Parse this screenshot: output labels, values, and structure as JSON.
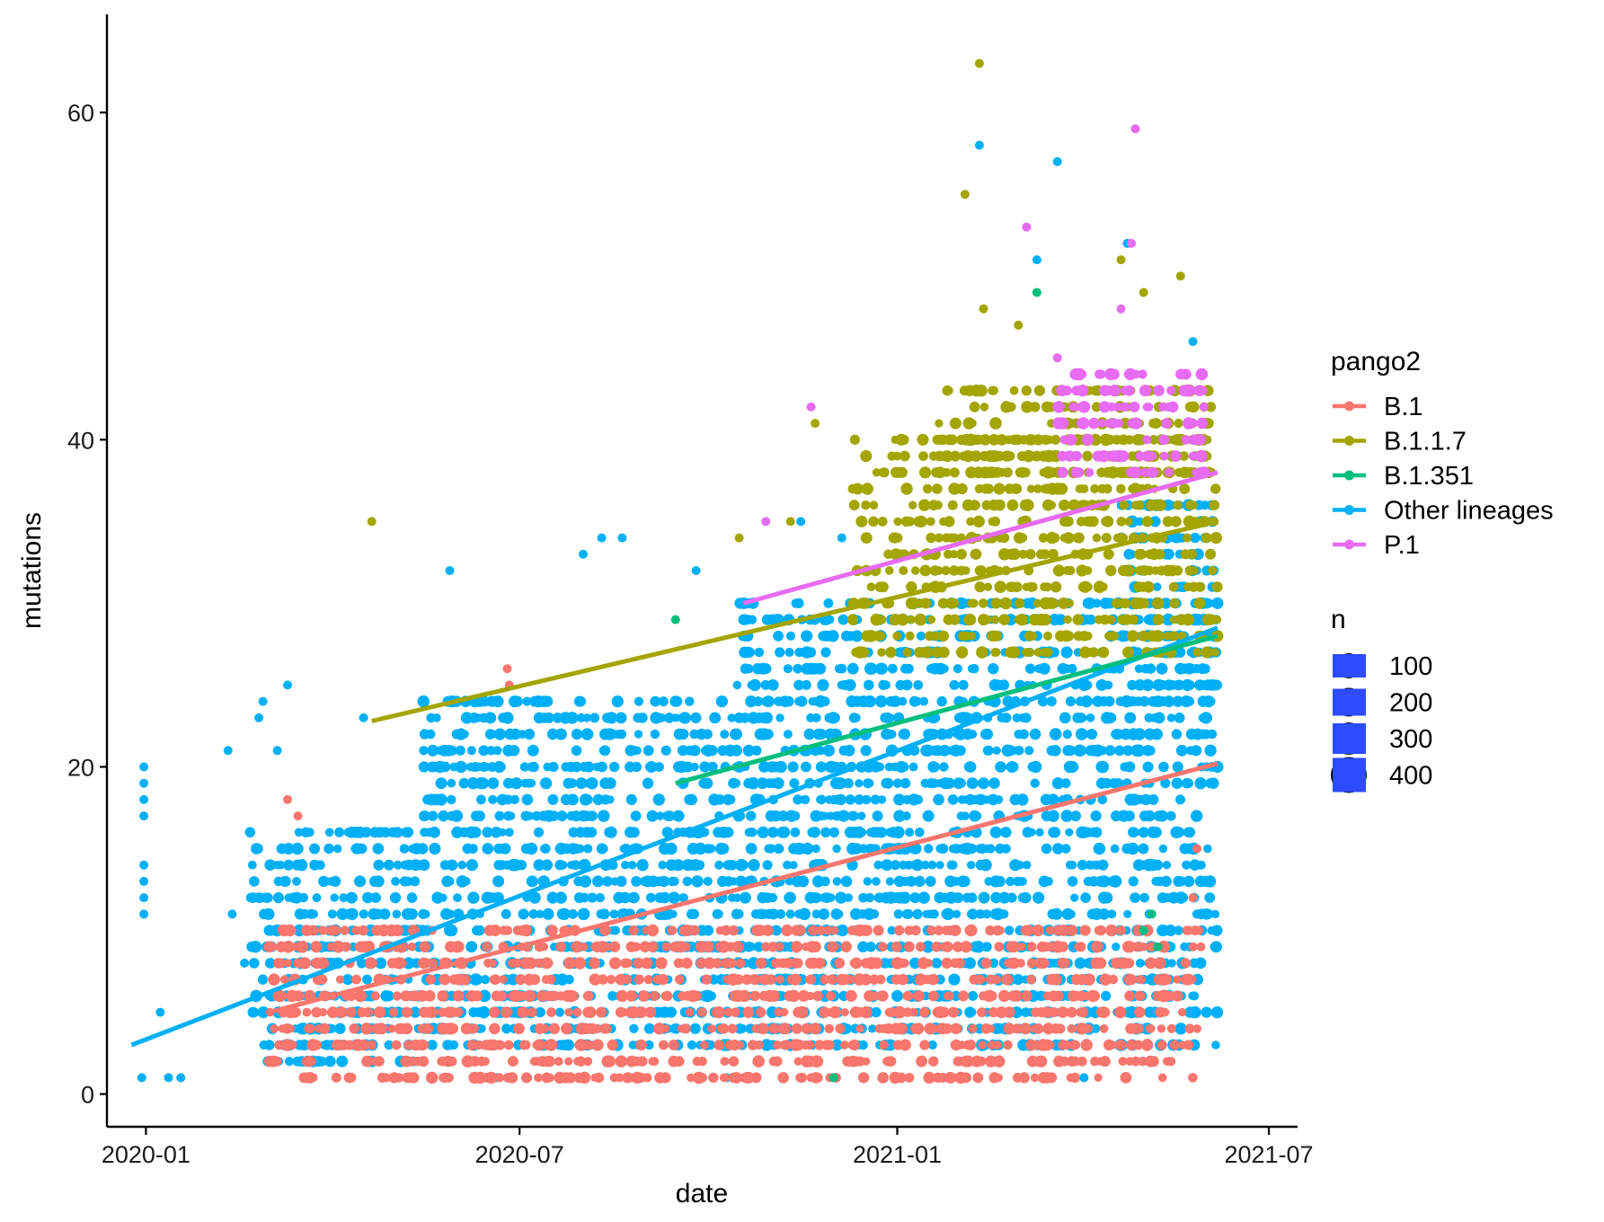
{
  "chart_data": {
    "type": "scatter",
    "xlabel": "date",
    "ylabel": "mutations",
    "x_ticks": [
      "2020-01",
      "2020-07",
      "2021-01",
      "2021-07"
    ],
    "y_ticks": [
      0,
      20,
      40,
      60
    ],
    "xlim": [
      "2019-12-13",
      "2021-07-15"
    ],
    "ylim": [
      -2,
      66
    ],
    "grid": false,
    "legend_color": {
      "title": "pango2",
      "entries": [
        {
          "label": "B.1",
          "color": "#F8766D"
        },
        {
          "label": "B.1.1.7",
          "color": "#A3A500"
        },
        {
          "label": "B.1.351",
          "color": "#00BF7D"
        },
        {
          "label": "Other lineages",
          "color": "#00B0F6"
        },
        {
          "label": "P.1",
          "color": "#E76BF3"
        }
      ]
    },
    "legend_size": {
      "title": "n",
      "entries": [
        100,
        200,
        300,
        400
      ],
      "color": "#2D4BFF"
    },
    "series": [
      {
        "name": "B.1",
        "color": "#F8766D",
        "trend": {
          "x": [
            "2020-03-01",
            "2021-06-06"
          ],
          "y": [
            5,
            20.2
          ]
        },
        "clusters": [
          {
            "x": [
              "2020-03-01",
              "2021-05-29"
            ],
            "y": [
              1,
              10
            ]
          }
        ],
        "points": [
          {
            "x": "2020-03-10",
            "y": 18
          },
          {
            "x": "2020-03-15",
            "y": 17
          },
          {
            "x": "2020-06-25",
            "y": 26
          },
          {
            "x": "2020-06-26",
            "y": 25
          },
          {
            "x": "2021-05-27",
            "y": 15
          },
          {
            "x": "2021-05-25",
            "y": 12
          },
          {
            "x": "2020-05-10",
            "y": 2
          },
          {
            "x": "2020-11-20",
            "y": 1
          }
        ]
      },
      {
        "name": "B.1.1.7",
        "color": "#A3A500",
        "trend": {
          "x": [
            "2020-04-20",
            "2021-06-06"
          ],
          "y": [
            22.8,
            35
          ]
        },
        "clusters": [
          {
            "x": [
              "2020-12-10",
              "2021-06-06"
            ],
            "y": [
              27,
              40
            ]
          },
          {
            "x": [
              "2021-01-20",
              "2021-06-04"
            ],
            "y": [
              38,
              43
            ]
          }
        ],
        "points": [
          {
            "x": "2020-04-20",
            "y": 35
          },
          {
            "x": "2021-02-10",
            "y": 63
          },
          {
            "x": "2021-02-03",
            "y": 55
          },
          {
            "x": "2021-02-12",
            "y": 48
          },
          {
            "x": "2021-04-20",
            "y": 51
          },
          {
            "x": "2021-05-19",
            "y": 50
          },
          {
            "x": "2021-05-01",
            "y": 49
          },
          {
            "x": "2021-03-01",
            "y": 47
          },
          {
            "x": "2020-11-22",
            "y": 41
          },
          {
            "x": "2020-12-25",
            "y": 38
          },
          {
            "x": "2020-10-16",
            "y": 34
          },
          {
            "x": "2020-11-10",
            "y": 35
          }
        ]
      },
      {
        "name": "B.1.351",
        "color": "#00BF7D",
        "trend": {
          "x": [
            "2020-09-15",
            "2021-06-06"
          ],
          "y": [
            19,
            28
          ]
        },
        "clusters": [],
        "points": [
          {
            "x": "2020-09-15",
            "y": 29
          },
          {
            "x": "2021-03-10",
            "y": 49
          },
          {
            "x": "2021-05-05",
            "y": 11
          },
          {
            "x": "2021-05-01",
            "y": 10
          },
          {
            "x": "2021-05-08",
            "y": 9
          },
          {
            "x": "2020-12-01",
            "y": 1
          }
        ]
      },
      {
        "name": "Other lineages",
        "color": "#00B0F6",
        "trend": {
          "x": [
            "2019-12-25",
            "2021-06-06"
          ],
          "y": [
            3,
            28.5
          ]
        },
        "clusters": [
          {
            "x": [
              "2020-02-20",
              "2020-05-15"
            ],
            "y": [
              2,
              16
            ]
          },
          {
            "x": [
              "2020-05-15",
              "2020-10-15"
            ],
            "y": [
              3,
              24
            ]
          },
          {
            "x": [
              "2020-10-15",
              "2021-06-06"
            ],
            "y": [
              3,
              30
            ]
          },
          {
            "x": [
              "2021-04-20",
              "2021-06-06"
            ],
            "y": [
              24,
              36
            ]
          }
        ],
        "points": [
          {
            "x": "2019-12-31",
            "y": 20
          },
          {
            "x": "2019-12-31",
            "y": 19
          },
          {
            "x": "2019-12-31",
            "y": 18
          },
          {
            "x": "2019-12-31",
            "y": 17
          },
          {
            "x": "2019-12-31",
            "y": 14
          },
          {
            "x": "2019-12-31",
            "y": 13
          },
          {
            "x": "2019-12-31",
            "y": 12
          },
          {
            "x": "2019-12-31",
            "y": 11
          },
          {
            "x": "2020-01-08",
            "y": 5
          },
          {
            "x": "2019-12-30",
            "y": 1
          },
          {
            "x": "2020-01-12",
            "y": 1
          },
          {
            "x": "2020-01-18",
            "y": 1
          },
          {
            "x": "2020-02-10",
            "y": 21
          },
          {
            "x": "2020-02-12",
            "y": 11
          },
          {
            "x": "2020-02-18",
            "y": 8
          },
          {
            "x": "2020-02-25",
            "y": 23
          },
          {
            "x": "2020-02-27",
            "y": 24
          },
          {
            "x": "2020-03-05",
            "y": 21
          },
          {
            "x": "2020-03-10",
            "y": 25
          },
          {
            "x": "2020-04-16",
            "y": 23
          },
          {
            "x": "2020-05-28",
            "y": 32
          },
          {
            "x": "2020-08-01",
            "y": 33
          },
          {
            "x": "2020-08-10",
            "y": 34
          },
          {
            "x": "2020-08-20",
            "y": 34
          },
          {
            "x": "2020-09-25",
            "y": 32
          },
          {
            "x": "2020-06-20",
            "y": 1
          },
          {
            "x": "2020-07-05",
            "y": 1
          },
          {
            "x": "2020-10-10",
            "y": 1
          },
          {
            "x": "2021-02-10",
            "y": 58
          },
          {
            "x": "2021-03-20",
            "y": 57
          },
          {
            "x": "2021-03-10",
            "y": 51
          },
          {
            "x": "2021-04-23",
            "y": 52
          },
          {
            "x": "2021-05-25",
            "y": 46
          },
          {
            "x": "2021-04-02",
            "y": 1
          },
          {
            "x": "2020-11-15",
            "y": 35
          },
          {
            "x": "2020-12-05",
            "y": 34
          }
        ]
      },
      {
        "name": "P.1",
        "color": "#E76BF3",
        "trend": {
          "x": [
            "2020-10-18",
            "2021-06-06"
          ],
          "y": [
            30,
            38
          ]
        },
        "clusters": [
          {
            "x": [
              "2021-03-20",
              "2021-06-02"
            ],
            "y": [
              38,
              44
            ]
          }
        ],
        "points": [
          {
            "x": "2021-04-27",
            "y": 59
          },
          {
            "x": "2021-03-05",
            "y": 53
          },
          {
            "x": "2021-04-25",
            "y": 52
          },
          {
            "x": "2020-11-20",
            "y": 42
          },
          {
            "x": "2020-10-29",
            "y": 35
          },
          {
            "x": "2021-04-20",
            "y": 48
          },
          {
            "x": "2021-03-20",
            "y": 45
          }
        ]
      }
    ]
  }
}
